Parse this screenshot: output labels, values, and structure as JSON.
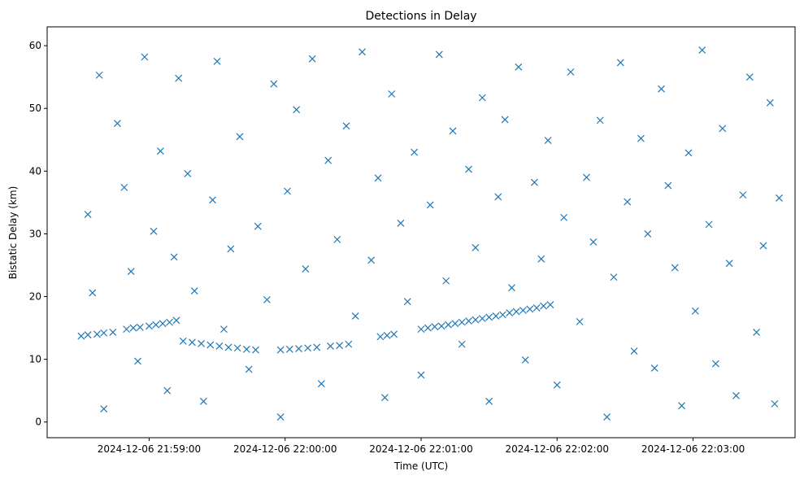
{
  "chart_data": {
    "type": "scatter",
    "title": "Detections in Delay",
    "xlabel": "Time (UTC)",
    "ylabel": "Bistatic Delay (km)",
    "x_unit": "UTC time",
    "xlim": [
      "2024-12-06 21:58:15",
      "2024-12-06 22:03:45"
    ],
    "ylim": [
      -2.5,
      63
    ],
    "x_ticks": [
      {
        "value": "2024-12-06 21:59:00",
        "label": "2024-12-06 21:59:00"
      },
      {
        "value": "2024-12-06 22:00:00",
        "label": "2024-12-06 22:00:00"
      },
      {
        "value": "2024-12-06 22:01:00",
        "label": "2024-12-06 22:01:00"
      },
      {
        "value": "2024-12-06 22:02:00",
        "label": "2024-12-06 22:02:00"
      },
      {
        "value": "2024-12-06 22:03:00",
        "label": "2024-12-06 22:03:00"
      }
    ],
    "y_ticks": [
      0,
      10,
      20,
      30,
      40,
      50,
      60
    ],
    "marker": "x",
    "color": "#1f77b4",
    "grid": false,
    "series": [
      {
        "points": [
          [
            "2024-12-06 21:58:30",
            13.7
          ],
          [
            "2024-12-06 21:58:33",
            13.9
          ],
          [
            "2024-12-06 21:58:37",
            14.0
          ],
          [
            "2024-12-06 21:58:40",
            14.2
          ],
          [
            "2024-12-06 21:58:44",
            14.3
          ],
          [
            "2024-12-06 21:58:50",
            14.8
          ],
          [
            "2024-12-06 21:58:53",
            15.0
          ],
          [
            "2024-12-06 21:58:56",
            15.1
          ],
          [
            "2024-12-06 21:59:00",
            15.3
          ],
          [
            "2024-12-06 21:59:03",
            15.5
          ],
          [
            "2024-12-06 21:59:06",
            15.7
          ],
          [
            "2024-12-06 21:59:09",
            15.9
          ],
          [
            "2024-12-06 21:59:12",
            16.2
          ],
          [
            "2024-12-06 21:59:15",
            12.9
          ],
          [
            "2024-12-06 21:59:19",
            12.7
          ],
          [
            "2024-12-06 21:59:23",
            12.5
          ],
          [
            "2024-12-06 21:59:27",
            12.3
          ],
          [
            "2024-12-06 21:59:31",
            12.1
          ],
          [
            "2024-12-06 21:59:35",
            11.9
          ],
          [
            "2024-12-06 21:59:39",
            11.8
          ],
          [
            "2024-12-06 21:59:43",
            11.6
          ],
          [
            "2024-12-06 21:59:47",
            11.5
          ],
          [
            "2024-12-06 21:59:58",
            11.5
          ],
          [
            "2024-12-06 22:00:02",
            11.6
          ],
          [
            "2024-12-06 22:00:06",
            11.7
          ],
          [
            "2024-12-06 22:00:10",
            11.8
          ],
          [
            "2024-12-06 22:00:14",
            11.9
          ],
          [
            "2024-12-06 22:00:20",
            12.1
          ],
          [
            "2024-12-06 22:00:24",
            12.2
          ],
          [
            "2024-12-06 22:00:28",
            12.4
          ],
          [
            "2024-12-06 22:00:42",
            13.6
          ],
          [
            "2024-12-06 22:00:45",
            13.8
          ],
          [
            "2024-12-06 22:00:48",
            14.0
          ],
          [
            "2024-12-06 22:01:00",
            14.8
          ],
          [
            "2024-12-06 22:01:03",
            15.0
          ],
          [
            "2024-12-06 22:01:06",
            15.2
          ],
          [
            "2024-12-06 22:01:09",
            15.3
          ],
          [
            "2024-12-06 22:01:12",
            15.5
          ],
          [
            "2024-12-06 22:01:15",
            15.7
          ],
          [
            "2024-12-06 22:01:18",
            15.9
          ],
          [
            "2024-12-06 22:01:21",
            16.1
          ],
          [
            "2024-12-06 22:01:24",
            16.3
          ],
          [
            "2024-12-06 22:01:27",
            16.5
          ],
          [
            "2024-12-06 22:01:30",
            16.7
          ],
          [
            "2024-12-06 22:01:33",
            16.9
          ],
          [
            "2024-12-06 22:01:36",
            17.1
          ],
          [
            "2024-12-06 22:01:39",
            17.4
          ],
          [
            "2024-12-06 22:01:42",
            17.6
          ],
          [
            "2024-12-06 22:01:45",
            17.8
          ],
          [
            "2024-12-06 22:01:48",
            18.0
          ],
          [
            "2024-12-06 22:01:51",
            18.2
          ],
          [
            "2024-12-06 22:01:54",
            18.5
          ],
          [
            "2024-12-06 22:01:57",
            18.7
          ],
          [
            "2024-12-06 21:58:33",
            33.1
          ],
          [
            "2024-12-06 21:58:35",
            20.6
          ],
          [
            "2024-12-06 21:58:38",
            55.3
          ],
          [
            "2024-12-06 21:58:40",
            2.1
          ],
          [
            "2024-12-06 21:58:46",
            47.6
          ],
          [
            "2024-12-06 21:58:49",
            37.4
          ],
          [
            "2024-12-06 21:58:52",
            24.0
          ],
          [
            "2024-12-06 21:58:55",
            9.7
          ],
          [
            "2024-12-06 21:58:58",
            58.2
          ],
          [
            "2024-12-06 21:59:02",
            30.4
          ],
          [
            "2024-12-06 21:59:05",
            43.2
          ],
          [
            "2024-12-06 21:59:08",
            5.0
          ],
          [
            "2024-12-06 21:59:11",
            26.3
          ],
          [
            "2024-12-06 21:59:13",
            54.8
          ],
          [
            "2024-12-06 21:59:17",
            39.6
          ],
          [
            "2024-12-06 21:59:20",
            20.9
          ],
          [
            "2024-12-06 21:59:24",
            3.3
          ],
          [
            "2024-12-06 21:59:28",
            35.4
          ],
          [
            "2024-12-06 21:59:30",
            57.5
          ],
          [
            "2024-12-06 21:59:33",
            14.8
          ],
          [
            "2024-12-06 21:59:36",
            27.6
          ],
          [
            "2024-12-06 21:59:40",
            45.5
          ],
          [
            "2024-12-06 21:59:44",
            8.4
          ],
          [
            "2024-12-06 21:59:48",
            31.2
          ],
          [
            "2024-12-06 21:59:52",
            19.5
          ],
          [
            "2024-12-06 21:59:55",
            53.9
          ],
          [
            "2024-12-06 21:59:58",
            0.8
          ],
          [
            "2024-12-06 22:00:01",
            36.8
          ],
          [
            "2024-12-06 22:00:05",
            49.8
          ],
          [
            "2024-12-06 22:00:09",
            24.4
          ],
          [
            "2024-12-06 22:00:12",
            57.9
          ],
          [
            "2024-12-06 22:00:16",
            6.1
          ],
          [
            "2024-12-06 22:00:19",
            41.7
          ],
          [
            "2024-12-06 22:00:23",
            29.1
          ],
          [
            "2024-12-06 22:00:27",
            47.2
          ],
          [
            "2024-12-06 22:00:31",
            16.9
          ],
          [
            "2024-12-06 22:00:34",
            59.0
          ],
          [
            "2024-12-06 22:00:38",
            25.8
          ],
          [
            "2024-12-06 22:00:41",
            38.9
          ],
          [
            "2024-12-06 22:00:44",
            3.9
          ],
          [
            "2024-12-06 22:00:47",
            52.3
          ],
          [
            "2024-12-06 22:00:51",
            31.7
          ],
          [
            "2024-12-06 22:00:54",
            19.2
          ],
          [
            "2024-12-06 22:00:57",
            43.0
          ],
          [
            "2024-12-06 22:01:00",
            7.5
          ],
          [
            "2024-12-06 22:01:04",
            34.6
          ],
          [
            "2024-12-06 22:01:08",
            58.6
          ],
          [
            "2024-12-06 22:01:11",
            22.5
          ],
          [
            "2024-12-06 22:01:14",
            46.4
          ],
          [
            "2024-12-06 22:01:18",
            12.4
          ],
          [
            "2024-12-06 22:01:21",
            40.3
          ],
          [
            "2024-12-06 22:01:24",
            27.8
          ],
          [
            "2024-12-06 22:01:27",
            51.7
          ],
          [
            "2024-12-06 22:01:30",
            3.3
          ],
          [
            "2024-12-06 22:01:34",
            35.9
          ],
          [
            "2024-12-06 22:01:37",
            48.2
          ],
          [
            "2024-12-06 22:01:40",
            21.4
          ],
          [
            "2024-12-06 22:01:43",
            56.6
          ],
          [
            "2024-12-06 22:01:46",
            9.9
          ],
          [
            "2024-12-06 22:01:50",
            38.2
          ],
          [
            "2024-12-06 22:01:53",
            26.0
          ],
          [
            "2024-12-06 22:01:56",
            44.9
          ],
          [
            "2024-12-06 22:02:00",
            5.9
          ],
          [
            "2024-12-06 22:02:03",
            32.6
          ],
          [
            "2024-12-06 22:02:06",
            55.8
          ],
          [
            "2024-12-06 22:02:10",
            16.0
          ],
          [
            "2024-12-06 22:02:13",
            39.0
          ],
          [
            "2024-12-06 22:02:16",
            28.7
          ],
          [
            "2024-12-06 22:02:19",
            48.1
          ],
          [
            "2024-12-06 22:02:22",
            0.8
          ],
          [
            "2024-12-06 22:02:25",
            23.1
          ],
          [
            "2024-12-06 22:02:28",
            57.3
          ],
          [
            "2024-12-06 22:02:31",
            35.1
          ],
          [
            "2024-12-06 22:02:34",
            11.3
          ],
          [
            "2024-12-06 22:02:37",
            45.2
          ],
          [
            "2024-12-06 22:02:40",
            30.0
          ],
          [
            "2024-12-06 22:02:43",
            8.6
          ],
          [
            "2024-12-06 22:02:46",
            53.1
          ],
          [
            "2024-12-06 22:02:49",
            37.7
          ],
          [
            "2024-12-06 22:02:52",
            24.6
          ],
          [
            "2024-12-06 22:02:55",
            2.6
          ],
          [
            "2024-12-06 22:02:58",
            42.9
          ],
          [
            "2024-12-06 22:03:01",
            17.7
          ],
          [
            "2024-12-06 22:03:04",
            59.3
          ],
          [
            "2024-12-06 22:03:07",
            31.5
          ],
          [
            "2024-12-06 22:03:10",
            9.3
          ],
          [
            "2024-12-06 22:03:13",
            46.8
          ],
          [
            "2024-12-06 22:03:16",
            25.3
          ],
          [
            "2024-12-06 22:03:19",
            4.2
          ],
          [
            "2024-12-06 22:03:22",
            36.2
          ],
          [
            "2024-12-06 22:03:25",
            55.0
          ],
          [
            "2024-12-06 22:03:28",
            14.3
          ],
          [
            "2024-12-06 22:03:31",
            28.1
          ],
          [
            "2024-12-06 22:03:34",
            50.9
          ],
          [
            "2024-12-06 22:03:36",
            2.9
          ],
          [
            "2024-12-06 22:03:38",
            35.7
          ]
        ]
      }
    ]
  }
}
